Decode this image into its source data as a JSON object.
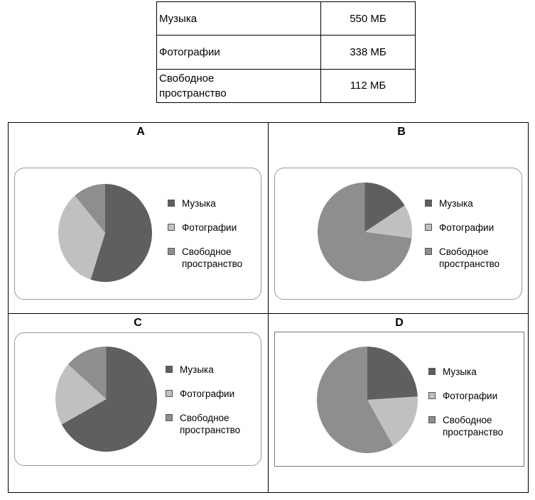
{
  "table": {
    "rows": [
      {
        "label": "Музыка",
        "value": "550 МБ"
      },
      {
        "label": "Фотографии",
        "value": "338 МБ"
      },
      {
        "label": "Свободное\nпространство",
        "value": "112 МБ"
      }
    ]
  },
  "colors": {
    "music": "#5f5f5f",
    "photos": "#c0c0c0",
    "free": "#8e8e8e"
  },
  "legend": {
    "music": "Музыка",
    "photos": "Фотографии",
    "free": "Свободное\nпространство"
  },
  "chart_data": [
    {
      "type": "pie",
      "title": "A",
      "slices": [
        {
          "name": "Музыка",
          "value": 55
        },
        {
          "name": "Фотографии",
          "value": 33.8
        },
        {
          "name": "Свободное пространство",
          "value": 11.2
        }
      ]
    },
    {
      "type": "pie",
      "title": "B",
      "slices": [
        {
          "name": "Музыка",
          "value": 16
        },
        {
          "name": "Фотографии",
          "value": 11
        },
        {
          "name": "Свободное пространство",
          "value": 73
        }
      ]
    },
    {
      "type": "pie",
      "title": "C",
      "slices": [
        {
          "name": "Музыка",
          "value": 67
        },
        {
          "name": "Фотографии",
          "value": 19.5
        },
        {
          "name": "Свободное пространство",
          "value": 13.5
        }
      ]
    },
    {
      "type": "pie",
      "title": "D",
      "slices": [
        {
          "name": "Музыка",
          "value": 24
        },
        {
          "name": "Фотографии",
          "value": 17.5
        },
        {
          "name": "Свободное пространство",
          "value": 58.5
        }
      ]
    }
  ]
}
